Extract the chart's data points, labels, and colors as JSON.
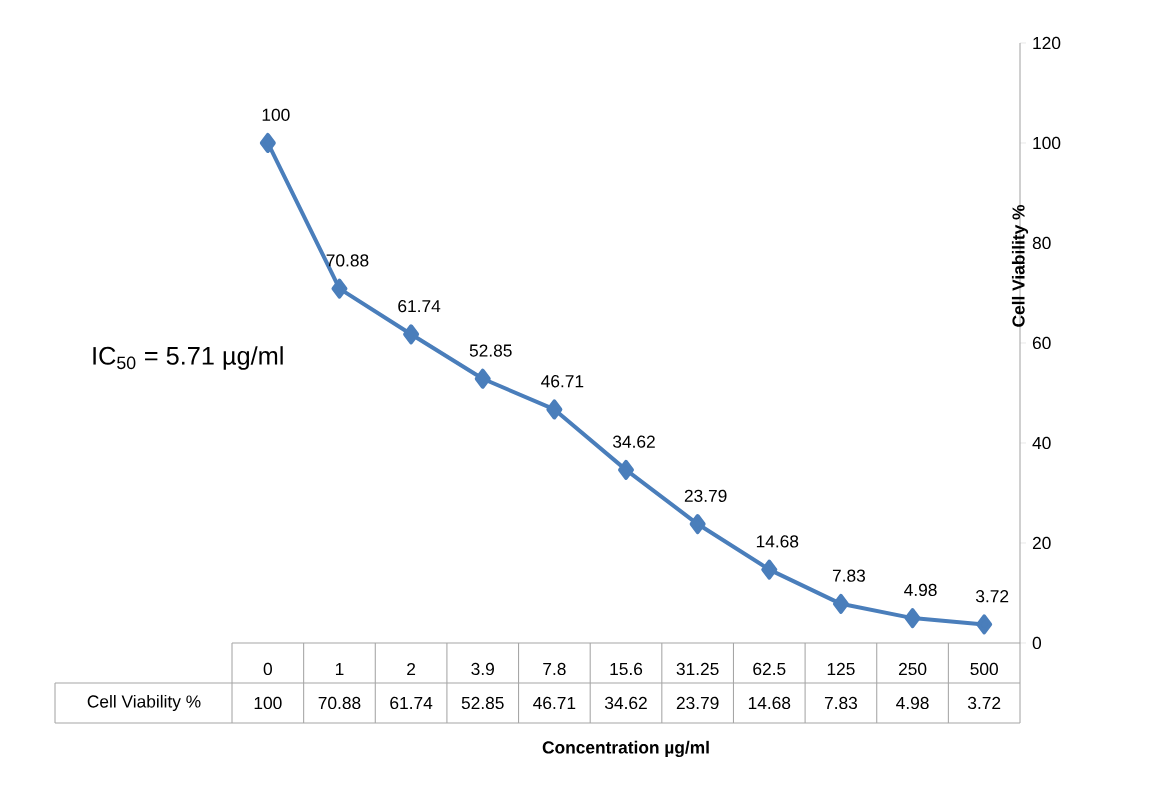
{
  "chart_data": {
    "type": "line",
    "xlabel": "Concentration µg/ml",
    "ylabel": "Cell Viability  %",
    "annotations": [
      "IC$_{50}$ = 5.71 µg/ml"
    ],
    "categories": [
      "0",
      "1",
      "2",
      "3.9",
      "7.8",
      "15.6",
      "31.25",
      "62.5",
      "125",
      "250",
      "500"
    ],
    "series": [
      {
        "name": "Cell Viability  %",
        "color": "#4a7ebb",
        "values": [
          100,
          70.88,
          61.74,
          52.85,
          46.71,
          34.62,
          23.79,
          14.68,
          7.83,
          4.98,
          3.72
        ],
        "value_labels": [
          "100",
          "70.88",
          "61.74",
          "52.85",
          "46.71",
          "34.62",
          "23.79",
          "14.68",
          "7.83",
          "4.98",
          "3.72"
        ]
      }
    ],
    "ylim": [
      0,
      120
    ],
    "yticks": [
      0,
      20,
      40,
      60,
      80,
      100,
      120
    ],
    "data_labels": true,
    "marker": "diamond",
    "line_style": "solid"
  }
}
